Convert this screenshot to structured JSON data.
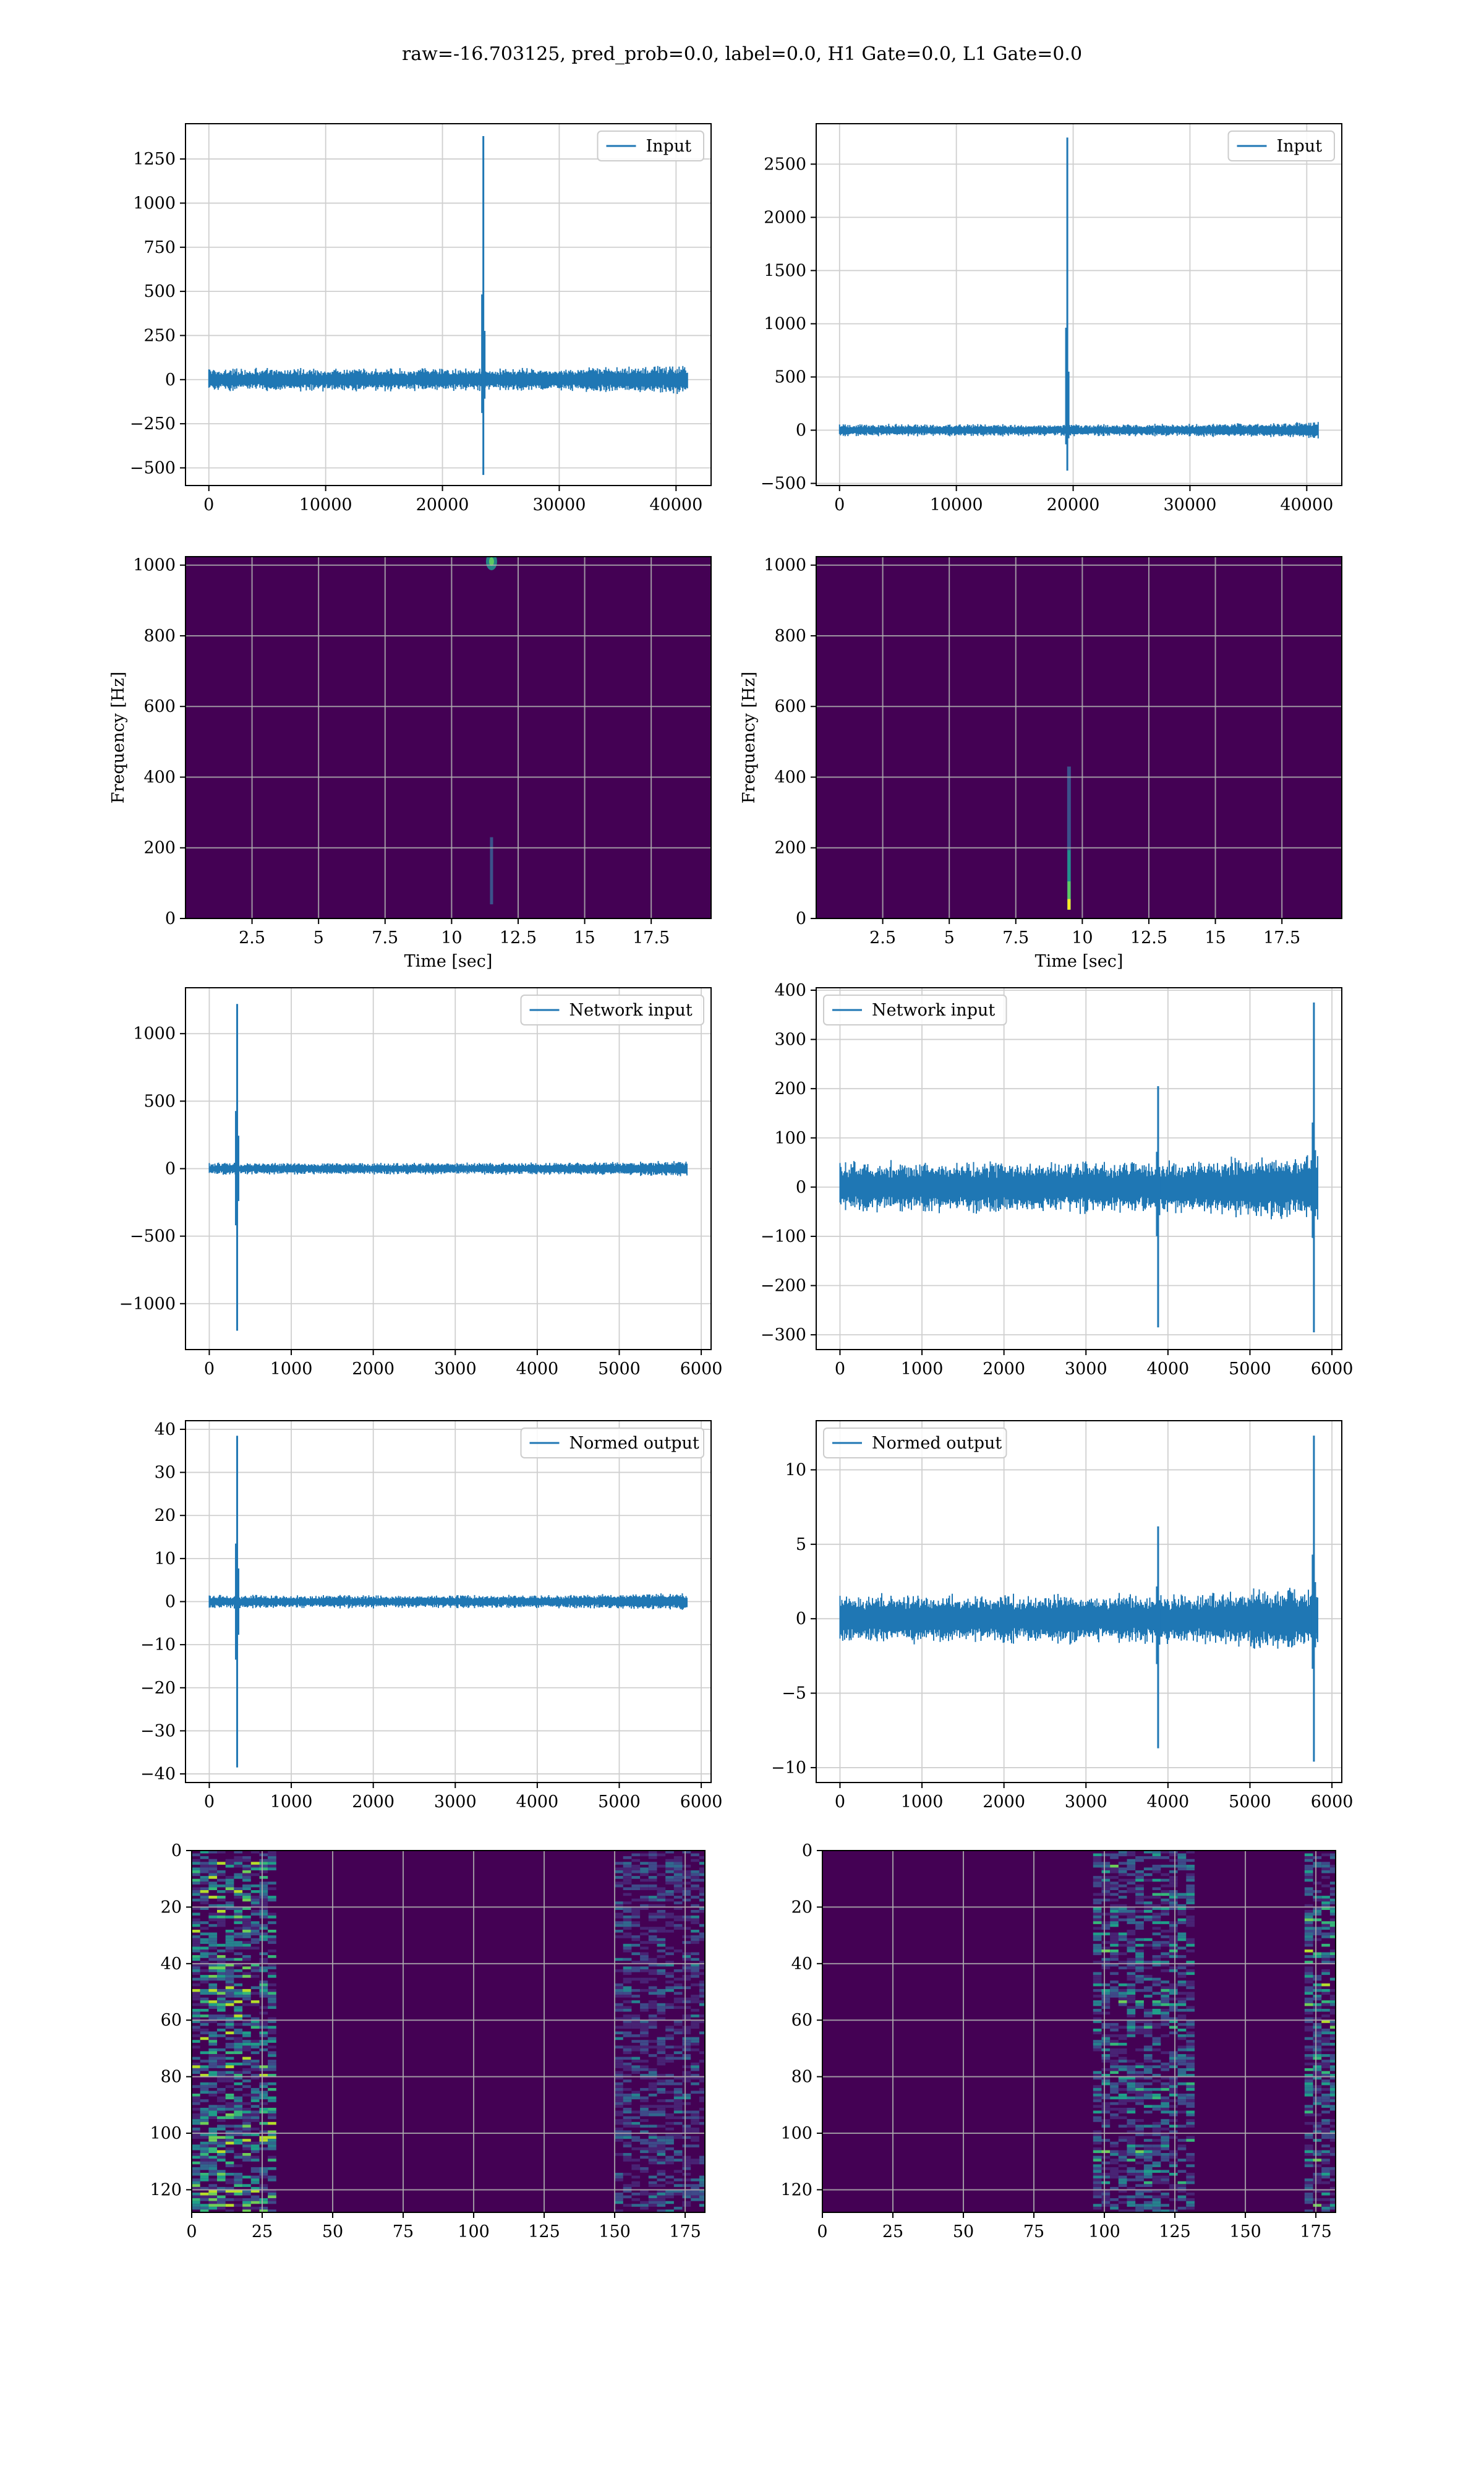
{
  "title": "raw=-16.703125, pred_prob=0.0, label=0.0, H1 Gate=0.0, L1 Gate=0.0",
  "colors": {
    "line": "#1f77b4",
    "heat_bg": "#440154",
    "heat_mid": "#3b528b",
    "heat_teal": "#21918c",
    "heat_green": "#5ec962",
    "heat_yellow": "#fde725",
    "grid_light": "#b0b0b0"
  },
  "chart_data": [
    {
      "id": "input-h1",
      "type": "line",
      "title": "",
      "xlabel": "",
      "ylabel": "",
      "legend": "Input",
      "legend_loc": "top-right",
      "grid": true,
      "xlim": [
        -2000,
        43000
      ],
      "ylim": [
        -600,
        1450
      ],
      "xticks": [
        0,
        10000,
        20000,
        30000,
        40000
      ],
      "yticks": [
        -500,
        -250,
        0,
        250,
        500,
        750,
        1000,
        1250
      ],
      "n": 41000,
      "noise_amp": 55,
      "spikes": [
        {
          "x": 23500,
          "max": 1380,
          "min": -540
        }
      ]
    },
    {
      "id": "input-l1",
      "type": "line",
      "title": "",
      "xlabel": "",
      "ylabel": "",
      "legend": "Input",
      "legend_loc": "top-right",
      "grid": true,
      "xlim": [
        -2000,
        43000
      ],
      "ylim": [
        -520,
        2880
      ],
      "xticks": [
        0,
        10000,
        20000,
        30000,
        40000
      ],
      "yticks": [
        -500,
        0,
        500,
        1000,
        1500,
        2000,
        2500
      ],
      "n": 41000,
      "noise_amp": 50,
      "spikes": [
        {
          "x": 19500,
          "max": 2750,
          "min": -380
        }
      ]
    },
    {
      "id": "spec-h1",
      "type": "heatmap",
      "title": "",
      "xlabel": "Time [sec]",
      "ylabel": "Frequency [Hz]",
      "grid": true,
      "xlim": [
        0,
        19.75
      ],
      "ylim": [
        0,
        1024
      ],
      "xticks": [
        2.5,
        5.0,
        7.5,
        10.0,
        12.5,
        15.0,
        17.5
      ],
      "yticks": [
        0,
        200,
        400,
        600,
        800,
        1000
      ],
      "features": [
        {
          "t": 11.5,
          "f": 1010,
          "kind": "blob"
        },
        {
          "t": 11.5,
          "f0": 40,
          "f1": 230,
          "kind": "faint-track"
        }
      ]
    },
    {
      "id": "spec-l1",
      "type": "heatmap",
      "title": "",
      "xlabel": "Time [sec]",
      "ylabel": "Frequency [Hz]",
      "grid": true,
      "xlim": [
        0,
        19.75
      ],
      "ylim": [
        0,
        1024
      ],
      "xticks": [
        2.5,
        5.0,
        7.5,
        10.0,
        12.5,
        15.0,
        17.5
      ],
      "yticks": [
        0,
        200,
        400,
        600,
        800,
        1000
      ],
      "features": [
        {
          "t": 9.5,
          "f0": 25,
          "f1": 430,
          "kind": "chirp-track"
        }
      ]
    },
    {
      "id": "network-h1",
      "type": "line",
      "title": "",
      "xlabel": "",
      "ylabel": "",
      "legend": "Network input",
      "legend_loc": "top-right",
      "grid": true,
      "xlim": [
        -290,
        6120
      ],
      "ylim": [
        -1340,
        1340
      ],
      "xticks": [
        0,
        1000,
        2000,
        3000,
        4000,
        5000,
        6000
      ],
      "yticks": [
        -1000,
        -500,
        0,
        500,
        1000
      ],
      "n": 5830,
      "noise_amp": 38,
      "spikes": [
        {
          "x": 340,
          "max": 1220,
          "min": -1200
        }
      ]
    },
    {
      "id": "network-l1",
      "type": "line",
      "title": "",
      "xlabel": "",
      "ylabel": "",
      "legend": "Network input",
      "legend_loc": "top-left",
      "grid": true,
      "xlim": [
        -290,
        6120
      ],
      "ylim": [
        -330,
        405
      ],
      "xticks": [
        0,
        1000,
        2000,
        3000,
        4000,
        5000,
        6000
      ],
      "yticks": [
        -300,
        -200,
        -100,
        0,
        100,
        200,
        300,
        400
      ],
      "n": 5830,
      "noise_amp": 45,
      "spikes": [
        {
          "x": 3880,
          "max": 205,
          "min": -285
        },
        {
          "x": 5780,
          "max": 375,
          "min": -295
        }
      ]
    },
    {
      "id": "normed-h1",
      "type": "line",
      "title": "",
      "xlabel": "",
      "ylabel": "",
      "legend": "Normed output",
      "legend_loc": "top-right",
      "grid": true,
      "xlim": [
        -290,
        6120
      ],
      "ylim": [
        -42,
        42
      ],
      "xticks": [
        0,
        1000,
        2000,
        3000,
        4000,
        5000,
        6000
      ],
      "yticks": [
        -40,
        -30,
        -20,
        -10,
        0,
        10,
        20,
        30,
        40
      ],
      "n": 5830,
      "noise_amp": 1.3,
      "spikes": [
        {
          "x": 340,
          "max": 38.5,
          "min": -38.5
        }
      ]
    },
    {
      "id": "normed-l1",
      "type": "line",
      "title": "",
      "xlabel": "",
      "ylabel": "",
      "legend": "Normed output",
      "legend_loc": "top-left",
      "grid": true,
      "xlim": [
        -290,
        6120
      ],
      "ylim": [
        -11,
        13.3
      ],
      "xticks": [
        0,
        1000,
        2000,
        3000,
        4000,
        5000,
        6000
      ],
      "yticks": [
        -10,
        -5,
        0,
        5,
        10
      ],
      "n": 5830,
      "noise_amp": 1.4,
      "spikes": [
        {
          "x": 3880,
          "max": 6.2,
          "min": -8.7
        },
        {
          "x": 5780,
          "max": 12.3,
          "min": -9.6
        }
      ]
    },
    {
      "id": "features-h1",
      "type": "heatmap",
      "title": "",
      "xlabel": "",
      "ylabel": "",
      "grid": true,
      "xlim": [
        0,
        182
      ],
      "ylim": [
        128,
        0
      ],
      "xticks": [
        0,
        25,
        50,
        75,
        100,
        125,
        150,
        175
      ],
      "yticks": [
        0,
        20,
        40,
        60,
        80,
        100,
        120
      ],
      "rows": 128,
      "cols": 182,
      "active_bands": [
        {
          "c0": 0,
          "c1": 30,
          "strength": 0.75
        },
        {
          "c0": 150,
          "c1": 182,
          "strength": 0.35
        }
      ]
    },
    {
      "id": "features-l1",
      "type": "heatmap",
      "title": "",
      "xlabel": "",
      "ylabel": "",
      "grid": true,
      "xlim": [
        0,
        182
      ],
      "ylim": [
        128,
        0
      ],
      "xticks": [
        0,
        25,
        50,
        75,
        100,
        125,
        150,
        175
      ],
      "yticks": [
        0,
        20,
        40,
        60,
        80,
        100,
        120
      ],
      "rows": 128,
      "cols": 182,
      "active_bands": [
        {
          "c0": 95,
          "c1": 130,
          "strength": 0.55
        },
        {
          "c0": 170,
          "c1": 182,
          "strength": 0.6
        }
      ]
    }
  ]
}
